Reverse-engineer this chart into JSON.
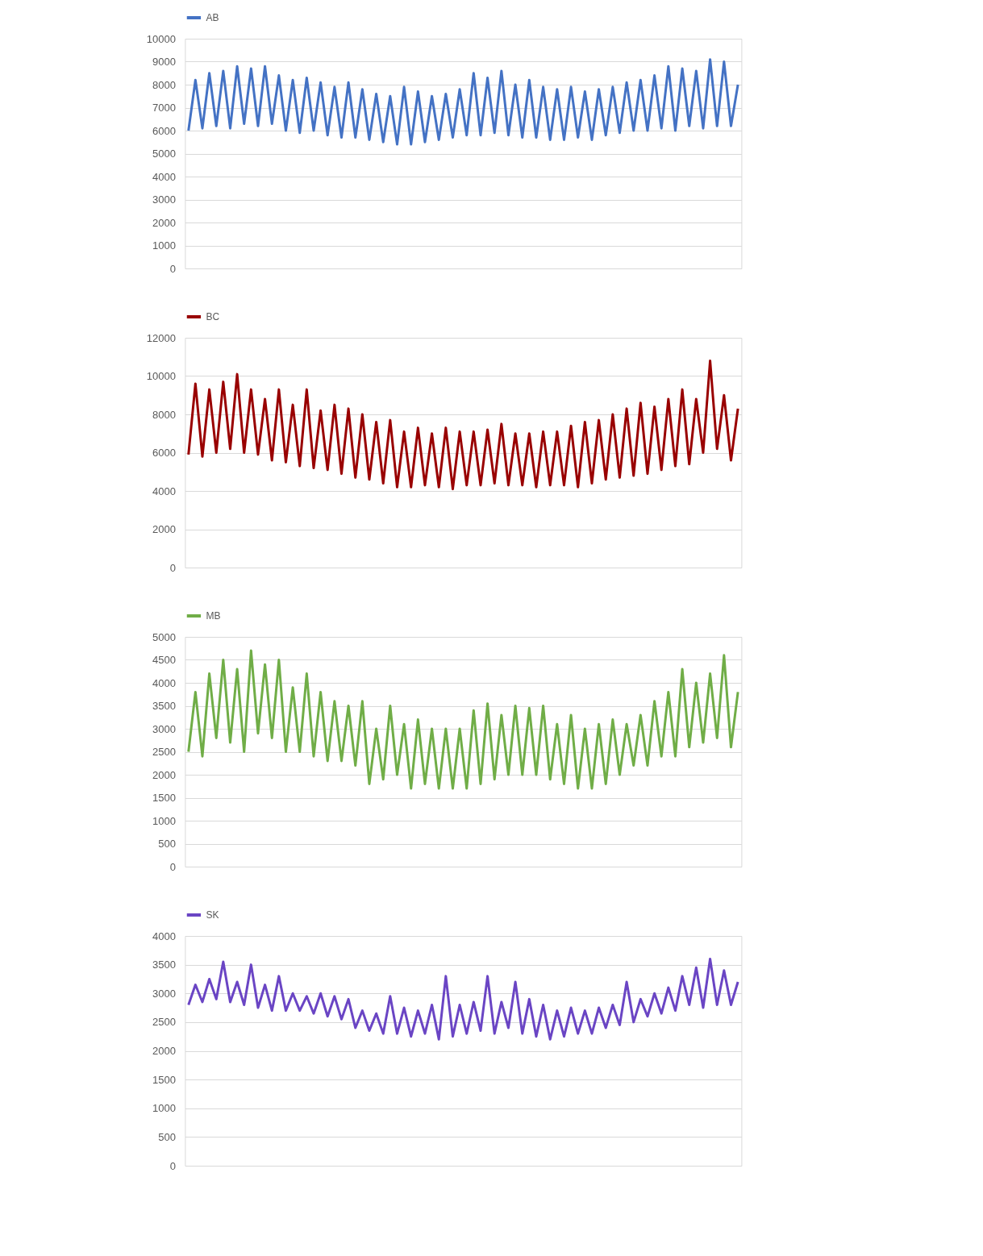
{
  "chart_data": [
    {
      "type": "line",
      "categories": [
        null,
        null,
        null,
        null,
        null,
        null,
        null,
        null,
        null,
        null,
        null,
        null,
        null,
        null,
        null,
        null,
        null,
        null,
        null,
        null,
        null,
        null,
        null,
        null,
        null,
        null,
        null,
        null,
        null,
        null,
        null,
        null,
        null,
        null,
        null,
        null,
        null,
        null,
        null,
        null,
        null,
        null,
        null,
        null,
        null,
        null,
        null,
        null,
        null,
        null,
        null,
        null,
        null,
        null,
        null,
        null,
        null,
        null,
        null,
        null,
        null,
        null,
        null,
        null,
        null,
        null,
        null,
        null,
        null,
        null,
        null,
        null,
        null,
        null,
        null,
        null,
        null,
        null,
        null,
        null
      ],
      "series": [
        {
          "name": "AB",
          "color": "#4472c4",
          "values": [
            6000,
            8200,
            6100,
            8500,
            6200,
            8600,
            6100,
            8800,
            6300,
            8700,
            6200,
            8800,
            6300,
            8400,
            6000,
            8200,
            5900,
            8300,
            6000,
            8100,
            5800,
            7900,
            5700,
            8100,
            5700,
            7800,
            5600,
            7600,
            5500,
            7500,
            5400,
            7900,
            5400,
            7700,
            5500,
            7500,
            5600,
            7600,
            5700,
            7800,
            5800,
            8500,
            5800,
            8300,
            5900,
            8600,
            5800,
            8000,
            5700,
            8200,
            5700,
            7900,
            5600,
            7800,
            5600,
            7900,
            5700,
            7700,
            5600,
            7800,
            5800,
            7900,
            5900,
            8100,
            6000,
            8200,
            6000,
            8400,
            6100,
            8800,
            6000,
            8700,
            6200,
            8600,
            6100,
            9100,
            6200,
            9000,
            6200,
            8000
          ]
        }
      ],
      "ylim": [
        0,
        10000
      ],
      "yticks": [
        0,
        1000,
        2000,
        3000,
        4000,
        5000,
        6000,
        7000,
        8000,
        9000,
        10000
      ],
      "grid": "y",
      "legend": "top",
      "line_style": "solid",
      "marker": "none"
    },
    {
      "type": "line",
      "categories": [
        null,
        null,
        null,
        null,
        null,
        null,
        null,
        null,
        null,
        null,
        null,
        null,
        null,
        null,
        null,
        null,
        null,
        null,
        null,
        null,
        null,
        null,
        null,
        null,
        null,
        null,
        null,
        null,
        null,
        null,
        null,
        null,
        null,
        null,
        null,
        null,
        null,
        null,
        null,
        null,
        null,
        null,
        null,
        null,
        null,
        null,
        null,
        null,
        null,
        null,
        null,
        null,
        null,
        null,
        null,
        null,
        null,
        null,
        null,
        null,
        null,
        null,
        null,
        null,
        null,
        null,
        null,
        null,
        null,
        null,
        null,
        null,
        null,
        null,
        null,
        null,
        null,
        null,
        null,
        null
      ],
      "series": [
        {
          "name": "BC",
          "color": "#990000",
          "values": [
            5900,
            9600,
            5800,
            9300,
            6000,
            9700,
            6200,
            10100,
            6000,
            9300,
            5900,
            8800,
            5600,
            9300,
            5500,
            8500,
            5300,
            9300,
            5200,
            8200,
            5100,
            8500,
            4900,
            8300,
            4700,
            8000,
            4600,
            7600,
            4400,
            7700,
            4200,
            7100,
            4200,
            7300,
            4300,
            7000,
            4200,
            7300,
            4100,
            7100,
            4300,
            7100,
            4300,
            7200,
            4400,
            7500,
            4300,
            7000,
            4300,
            7000,
            4200,
            7100,
            4300,
            7100,
            4300,
            7400,
            4200,
            7600,
            4400,
            7700,
            4600,
            8000,
            4700,
            8300,
            4800,
            8600,
            4900,
            8400,
            5100,
            8800,
            5300,
            9300,
            5400,
            8800,
            6000,
            10800,
            6200,
            9000,
            5600,
            8300
          ]
        }
      ],
      "ylim": [
        0,
        12000
      ],
      "yticks": [
        0,
        2000,
        4000,
        6000,
        8000,
        10000,
        12000
      ],
      "grid": "y",
      "legend": "top",
      "line_style": "solid",
      "marker": "none"
    },
    {
      "type": "line",
      "categories": [
        null,
        null,
        null,
        null,
        null,
        null,
        null,
        null,
        null,
        null,
        null,
        null,
        null,
        null,
        null,
        null,
        null,
        null,
        null,
        null,
        null,
        null,
        null,
        null,
        null,
        null,
        null,
        null,
        null,
        null,
        null,
        null,
        null,
        null,
        null,
        null,
        null,
        null,
        null,
        null,
        null,
        null,
        null,
        null,
        null,
        null,
        null,
        null,
        null,
        null,
        null,
        null,
        null,
        null,
        null,
        null,
        null,
        null,
        null,
        null,
        null,
        null,
        null,
        null,
        null,
        null,
        null,
        null,
        null,
        null,
        null,
        null,
        null,
        null,
        null,
        null,
        null,
        null,
        null,
        null
      ],
      "series": [
        {
          "name": "MB",
          "color": "#70ad47",
          "values": [
            2500,
            3800,
            2400,
            4200,
            2800,
            4500,
            2700,
            4300,
            2500,
            4700,
            2900,
            4400,
            2800,
            4500,
            2500,
            3900,
            2500,
            4200,
            2400,
            3800,
            2300,
            3600,
            2300,
            3500,
            2200,
            3600,
            1800,
            3000,
            1900,
            3500,
            2000,
            3100,
            1700,
            3200,
            1800,
            3000,
            1700,
            3000,
            1700,
            3000,
            1700,
            3400,
            1800,
            3550,
            1900,
            3300,
            2000,
            3500,
            2000,
            3450,
            2000,
            3500,
            1900,
            3100,
            1800,
            3300,
            1700,
            3000,
            1700,
            3100,
            1800,
            3200,
            2000,
            3100,
            2200,
            3300,
            2200,
            3600,
            2400,
            3800,
            2400,
            4300,
            2600,
            4000,
            2700,
            4200,
            2800,
            4600,
            2600,
            3800
          ]
        }
      ],
      "ylim": [
        0,
        5000
      ],
      "yticks": [
        0,
        500,
        1000,
        1500,
        2000,
        2500,
        3000,
        3500,
        4000,
        4500,
        5000
      ],
      "grid": "y",
      "legend": "top",
      "line_style": "solid",
      "marker": "none"
    },
    {
      "type": "line",
      "categories": [
        null,
        null,
        null,
        null,
        null,
        null,
        null,
        null,
        null,
        null,
        null,
        null,
        null,
        null,
        null,
        null,
        null,
        null,
        null,
        null,
        null,
        null,
        null,
        null,
        null,
        null,
        null,
        null,
        null,
        null,
        null,
        null,
        null,
        null,
        null,
        null,
        null,
        null,
        null,
        null,
        null,
        null,
        null,
        null,
        null,
        null,
        null,
        null,
        null,
        null,
        null,
        null,
        null,
        null,
        null,
        null,
        null,
        null,
        null,
        null,
        null,
        null,
        null,
        null,
        null,
        null,
        null,
        null,
        null,
        null,
        null,
        null,
        null,
        null,
        null,
        null,
        null,
        null,
        null,
        null
      ],
      "series": [
        {
          "name": "SK",
          "color": "#6a45c4",
          "values": [
            2800,
            3150,
            2850,
            3250,
            2900,
            3550,
            2850,
            3200,
            2800,
            3500,
            2750,
            3150,
            2700,
            3300,
            2700,
            3000,
            2700,
            2950,
            2650,
            3000,
            2600,
            2950,
            2550,
            2900,
            2400,
            2700,
            2350,
            2650,
            2300,
            2950,
            2300,
            2750,
            2250,
            2700,
            2300,
            2800,
            2200,
            3300,
            2250,
            2800,
            2300,
            2850,
            2350,
            3300,
            2300,
            2850,
            2400,
            3200,
            2300,
            2900,
            2250,
            2800,
            2200,
            2700,
            2250,
            2750,
            2300,
            2700,
            2300,
            2750,
            2400,
            2800,
            2450,
            3200,
            2500,
            2900,
            2600,
            3000,
            2650,
            3100,
            2700,
            3300,
            2800,
            3450,
            2750,
            3600,
            2800,
            3400,
            2800,
            3200
          ]
        }
      ],
      "ylim": [
        0,
        4000
      ],
      "yticks": [
        0,
        500,
        1000,
        1500,
        2000,
        2500,
        3000,
        3500,
        4000
      ],
      "grid": "y",
      "legend": "top",
      "line_style": "solid",
      "marker": "none"
    }
  ]
}
